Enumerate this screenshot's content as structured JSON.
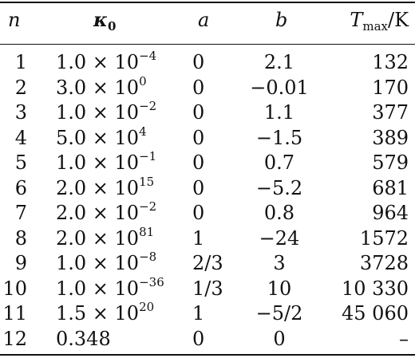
{
  "headers": {
    "n": "n",
    "kappa_symbol": "κ",
    "kappa_sub": "0",
    "a": "a",
    "b": "b",
    "tmax_symbol": "T",
    "tmax_sub": "max",
    "tmax_unit": "/K"
  },
  "rows": [
    {
      "n": "1",
      "kappa_mant": "1.0 × 10",
      "kappa_exp": "−4",
      "a": "0",
      "b": "2.1",
      "tmax": "132"
    },
    {
      "n": "2",
      "kappa_mant": "3.0 × 10",
      "kappa_exp": "0",
      "a": "0",
      "b": "−0.01",
      "tmax": "170"
    },
    {
      "n": "3",
      "kappa_mant": "1.0 × 10",
      "kappa_exp": "−2",
      "a": "0",
      "b": "1.1",
      "tmax": "377"
    },
    {
      "n": "4",
      "kappa_mant": "5.0 × 10",
      "kappa_exp": "4",
      "a": "0",
      "b": "−1.5",
      "tmax": "389"
    },
    {
      "n": "5",
      "kappa_mant": "1.0 × 10",
      "kappa_exp": "−1",
      "a": "0",
      "b": "0.7",
      "tmax": "579"
    },
    {
      "n": "6",
      "kappa_mant": "2.0 × 10",
      "kappa_exp": "15",
      "a": "0",
      "b": "−5.2",
      "tmax": "681"
    },
    {
      "n": "7",
      "kappa_mant": "2.0 × 10",
      "kappa_exp": "−2",
      "a": "0",
      "b": "0.8",
      "tmax": "964"
    },
    {
      "n": "8",
      "kappa_mant": "2.0 × 10",
      "kappa_exp": "81",
      "a": "1",
      "b": "−24",
      "tmax": "1572"
    },
    {
      "n": "9",
      "kappa_mant": "1.0 × 10",
      "kappa_exp": "−8",
      "a": "2/3",
      "b": "3",
      "tmax": "3728"
    },
    {
      "n": "10",
      "kappa_mant": "1.0 × 10",
      "kappa_exp": "−36",
      "a": "1/3",
      "b": "10",
      "tmax": "10 330"
    },
    {
      "n": "11",
      "kappa_mant": "1.5 × 10",
      "kappa_exp": "20",
      "a": "1",
      "b": "−5/2",
      "tmax": "45 060"
    },
    {
      "n": "12",
      "kappa_mant": "0.348",
      "kappa_exp": "",
      "a": "0",
      "b": "0",
      "tmax": "–"
    }
  ]
}
